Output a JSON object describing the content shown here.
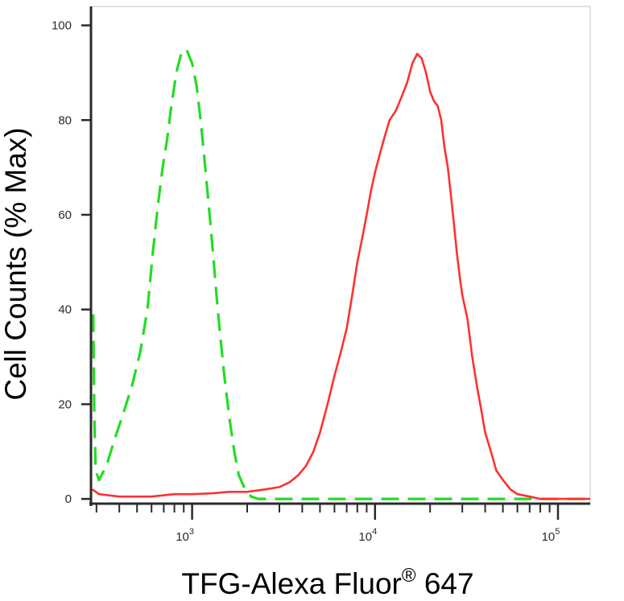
{
  "chart_data": {
    "type": "line",
    "title": "",
    "xlabel": "TFG-Alexa Fluor",
    "xlabel_superscript": "®",
    "xlabel_suffix": " 647",
    "ylabel": "Cell Counts (% Max)",
    "x_scale": "log",
    "xlim": [
      280,
      150000
    ],
    "ylim": [
      -1,
      104
    ],
    "y_ticks": [
      0,
      20,
      40,
      60,
      80,
      100
    ],
    "x_ticks": [
      {
        "value": 1000,
        "base": "10",
        "exp": "3"
      },
      {
        "value": 10000,
        "base": "10",
        "exp": "4"
      },
      {
        "value": 100000,
        "base": "10",
        "exp": "5"
      }
    ],
    "grid": false,
    "legend": "none",
    "series": [
      {
        "color": "#22dd22",
        "style": "dashed",
        "points": [
          [
            288,
            39
          ],
          [
            292,
            18
          ],
          [
            297,
            6
          ],
          [
            310,
            4
          ],
          [
            340,
            7
          ],
          [
            380,
            13
          ],
          [
            420,
            18
          ],
          [
            470,
            24
          ],
          [
            520,
            31
          ],
          [
            570,
            40
          ],
          [
            610,
            52
          ],
          [
            650,
            62
          ],
          [
            690,
            70
          ],
          [
            730,
            76
          ],
          [
            770,
            83
          ],
          [
            820,
            90
          ],
          [
            870,
            94
          ],
          [
            930,
            95
          ],
          [
            1000,
            92
          ],
          [
            1060,
            87
          ],
          [
            1120,
            79
          ],
          [
            1180,
            70
          ],
          [
            1240,
            61
          ],
          [
            1300,
            52
          ],
          [
            1360,
            43
          ],
          [
            1420,
            35
          ],
          [
            1500,
            26
          ],
          [
            1600,
            17
          ],
          [
            1700,
            10
          ],
          [
            1800,
            5
          ],
          [
            1950,
            2
          ],
          [
            2100,
            0.5
          ],
          [
            2300,
            0
          ],
          [
            150000,
            0
          ]
        ]
      },
      {
        "color": "#ff3030",
        "style": "solid",
        "points": [
          [
            285,
            2
          ],
          [
            310,
            1
          ],
          [
            400,
            0.5
          ],
          [
            600,
            0.5
          ],
          [
            800,
            1
          ],
          [
            1000,
            1
          ],
          [
            1300,
            1.2
          ],
          [
            1600,
            1.5
          ],
          [
            2000,
            1.5
          ],
          [
            2500,
            2
          ],
          [
            3000,
            2.5
          ],
          [
            3400,
            3.5
          ],
          [
            3800,
            5
          ],
          [
            4200,
            7
          ],
          [
            4600,
            10
          ],
          [
            5000,
            14
          ],
          [
            5500,
            20
          ],
          [
            6000,
            26
          ],
          [
            6500,
            31
          ],
          [
            7000,
            36
          ],
          [
            7500,
            43
          ],
          [
            8000,
            50
          ],
          [
            8500,
            55
          ],
          [
            9000,
            60
          ],
          [
            9500,
            65
          ],
          [
            10000,
            69
          ],
          [
            11000,
            75
          ],
          [
            12000,
            80
          ],
          [
            13000,
            82
          ],
          [
            14000,
            85
          ],
          [
            15000,
            88
          ],
          [
            16000,
            92
          ],
          [
            17000,
            94
          ],
          [
            18000,
            93
          ],
          [
            19000,
            90
          ],
          [
            20000,
            86
          ],
          [
            21000,
            84
          ],
          [
            22000,
            83
          ],
          [
            23000,
            80
          ],
          [
            24000,
            74
          ],
          [
            25000,
            70
          ],
          [
            26000,
            64
          ],
          [
            27000,
            58
          ],
          [
            28000,
            52
          ],
          [
            29000,
            47
          ],
          [
            30000,
            43
          ],
          [
            32000,
            38
          ],
          [
            34000,
            30
          ],
          [
            36000,
            24
          ],
          [
            38000,
            19
          ],
          [
            40000,
            14
          ],
          [
            43000,
            10
          ],
          [
            46000,
            6
          ],
          [
            50000,
            4
          ],
          [
            55000,
            2
          ],
          [
            60000,
            1
          ],
          [
            70000,
            0.5
          ],
          [
            80000,
            0
          ],
          [
            150000,
            0
          ]
        ]
      }
    ]
  }
}
